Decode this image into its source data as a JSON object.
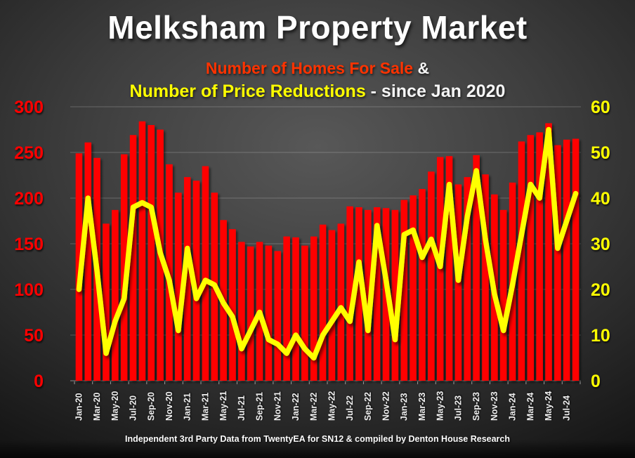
{
  "title": "Melksham Property Market",
  "subtitle": {
    "series1_label": "Number of Homes For Sale",
    "ampersand": " &",
    "series2_label": "Number of Price Reductions",
    "suffix": " - since Jan 2020"
  },
  "footer": "Independent 3rd Party Data from TwentyEA for SN12 & compiled by Denton House Research",
  "colors": {
    "bar": "#ff0600",
    "line": "#ffff00",
    "left_axis_text": "#ff0000",
    "right_axis_text": "#ffff00",
    "x_axis_text": "#f0f0f0",
    "gridline": "rgba(255,255,255,0.22)"
  },
  "chart_data": {
    "type": "bar",
    "subtype": "bar+line dual axis",
    "grid": true,
    "legend_position": "in subtitle (color-coded)",
    "categories": [
      "Jan-20",
      "Feb-20",
      "Mar-20",
      "Apr-20",
      "May-20",
      "Jun-20",
      "Jul-20",
      "Aug-20",
      "Sep-20",
      "Oct-20",
      "Nov-20",
      "Dec-20",
      "Jan-21",
      "Feb-21",
      "Mar-21",
      "Apr-21",
      "May-21",
      "Jun-21",
      "Jul-21",
      "Aug-21",
      "Sep-21",
      "Oct-21",
      "Nov-21",
      "Dec-21",
      "Jan-22",
      "Feb-22",
      "Mar-22",
      "Apr-22",
      "May-22",
      "Jun-22",
      "Jul-22",
      "Aug-22",
      "Sep-22",
      "Oct-22",
      "Nov-22",
      "Dec-22",
      "Jan-23",
      "Feb-23",
      "Mar-23",
      "Apr-23",
      "May-23",
      "Jun-23",
      "Jul-23",
      "Aug-23",
      "Sep-23",
      "Oct-23",
      "Nov-23",
      "Dec-23",
      "Jan-24",
      "Feb-24",
      "Mar-24",
      "Apr-24",
      "May-24",
      "Jun-24",
      "Jul-24",
      "Aug-24"
    ],
    "x_tick_label_interval": 2,
    "series": [
      {
        "name": "Number of Homes For Sale",
        "type": "bar",
        "axis": "left",
        "color": "#ff0600",
        "values": [
          249,
          261,
          244,
          172,
          187,
          248,
          269,
          284,
          280,
          275,
          237,
          206,
          223,
          219,
          235,
          206,
          176,
          166,
          152,
          147,
          152,
          148,
          142,
          158,
          157,
          148,
          158,
          171,
          165,
          172,
          191,
          190,
          187,
          190,
          189,
          187,
          198,
          203,
          210,
          229,
          245,
          246,
          215,
          223,
          247,
          226,
          204,
          187,
          217,
          262,
          269,
          272,
          282,
          258,
          264,
          265
        ]
      },
      {
        "name": "Number of Price Reductions",
        "type": "line",
        "axis": "right",
        "color": "#ffff00",
        "values": [
          20,
          40,
          24,
          6,
          13,
          18,
          38,
          39,
          38,
          28,
          22,
          11,
          29,
          18,
          22,
          21,
          17,
          14,
          7,
          11,
          15,
          9,
          8,
          6,
          10,
          7,
          5,
          10,
          13,
          16,
          13,
          26,
          11,
          34,
          22,
          9,
          32,
          33,
          27,
          31,
          25,
          43,
          22,
          36,
          46,
          31,
          19,
          11,
          21,
          32,
          43,
          40,
          55,
          29,
          35,
          41
        ]
      }
    ],
    "left_axis": {
      "min": 0,
      "max": 300,
      "step": 50,
      "ticks": [
        300,
        250,
        200,
        150,
        100,
        50,
        0
      ]
    },
    "right_axis": {
      "min": 0,
      "max": 60,
      "step": 10,
      "ticks": [
        60,
        50,
        40,
        30,
        20,
        10,
        0
      ]
    }
  }
}
